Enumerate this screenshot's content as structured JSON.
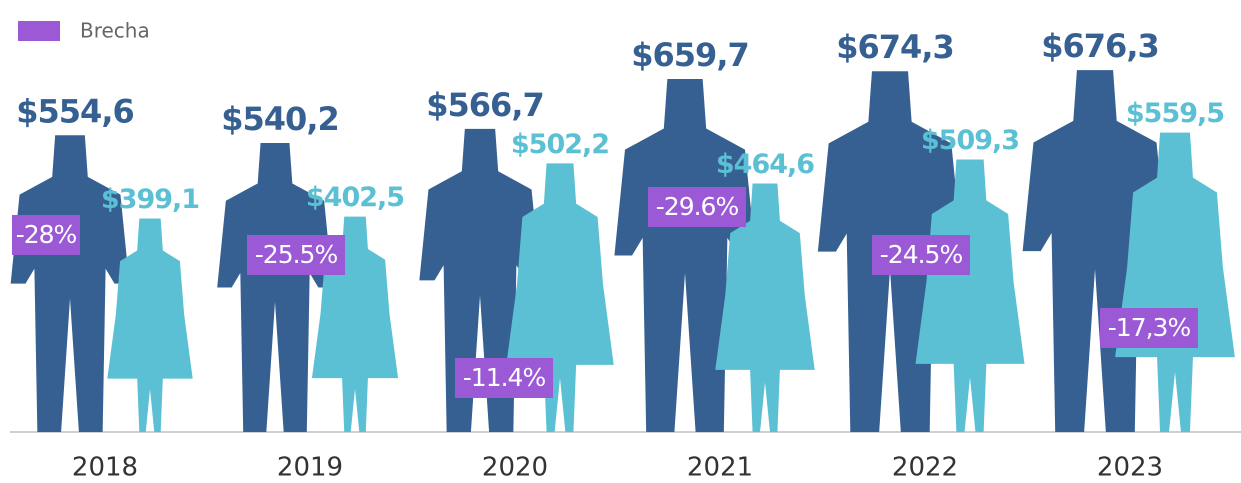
{
  "chart_data": {
    "type": "pictograph",
    "categories": [
      "2018",
      "2019",
      "2020",
      "2021",
      "2022",
      "2023"
    ],
    "series": [
      {
        "color": "#376092",
        "values": [
          554.6,
          540.2,
          566.7,
          659.7,
          674.3,
          676.3
        ],
        "value_labels": [
          "$554,6",
          "$540,2",
          "$566,7",
          "$659,7",
          "$674,3",
          "$676,3"
        ]
      },
      {
        "color": "#5bc0d3",
        "values": [
          399.1,
          402.5,
          502.2,
          464.6,
          509.3,
          559.5
        ],
        "value_labels": [
          "$399,1",
          "$402,5",
          "$502,2",
          "$464,6",
          "$509,3",
          "$559,5"
        ]
      },
      {
        "name": "Brecha",
        "color": "#9b59d6",
        "values": [
          -28,
          -25.5,
          -11.4,
          -29.6,
          -24.5,
          -17.3
        ],
        "value_labels": [
          "-28%",
          "-25.5%",
          "-11.4%",
          "-29.6%",
          "-24.5%",
          "-17,3%"
        ]
      }
    ]
  }
}
